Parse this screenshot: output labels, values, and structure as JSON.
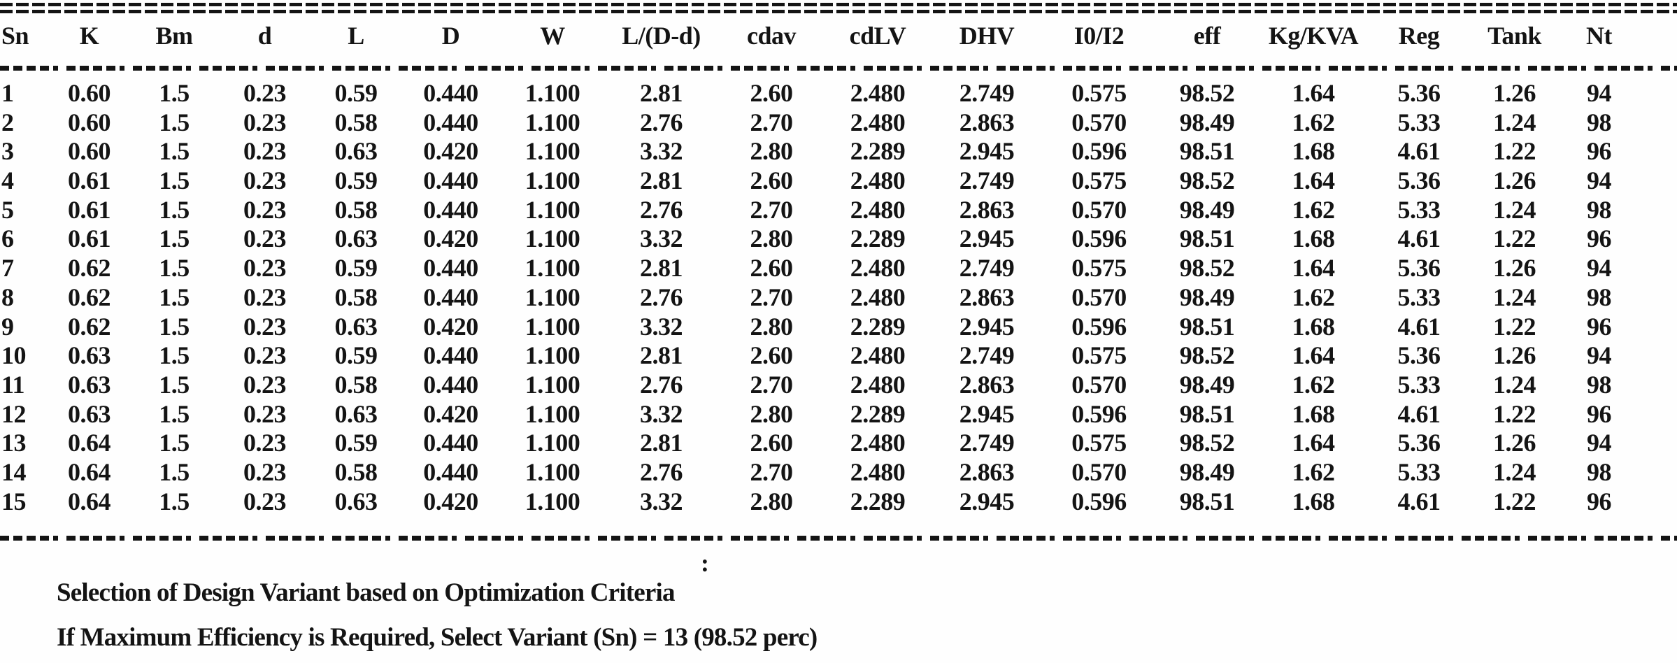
{
  "colors": {
    "ink": "#141414",
    "paper": "#fefefe"
  },
  "table": {
    "headers": [
      "Sn",
      "K",
      "Bm",
      "d",
      "L",
      "D",
      "W",
      "L/(D-d)",
      "cdav",
      "cdLV",
      "DHV",
      "I0/I2",
      "eff",
      "Kg/KVA",
      "Reg",
      "Tank",
      "Nt"
    ],
    "rows": [
      [
        "1",
        "0.60",
        "1.5",
        "0.23",
        "0.59",
        "0.440",
        "1.100",
        "2.81",
        "2.60",
        "2.480",
        "2.749",
        "0.575",
        "98.52",
        "1.64",
        "5.36",
        "1.26",
        "94"
      ],
      [
        "2",
        "0.60",
        "1.5",
        "0.23",
        "0.58",
        "0.440",
        "1.100",
        "2.76",
        "2.70",
        "2.480",
        "2.863",
        "0.570",
        "98.49",
        "1.62",
        "5.33",
        "1.24",
        "98"
      ],
      [
        "3",
        "0.60",
        "1.5",
        "0.23",
        "0.63",
        "0.420",
        "1.100",
        "3.32",
        "2.80",
        "2.289",
        "2.945",
        "0.596",
        "98.51",
        "1.68",
        "4.61",
        "1.22",
        "96"
      ],
      [
        "4",
        "0.61",
        "1.5",
        "0.23",
        "0.59",
        "0.440",
        "1.100",
        "2.81",
        "2.60",
        "2.480",
        "2.749",
        "0.575",
        "98.52",
        "1.64",
        "5.36",
        "1.26",
        "94"
      ],
      [
        "5",
        "0.61",
        "1.5",
        "0.23",
        "0.58",
        "0.440",
        "1.100",
        "2.76",
        "2.70",
        "2.480",
        "2.863",
        "0.570",
        "98.49",
        "1.62",
        "5.33",
        "1.24",
        "98"
      ],
      [
        "6",
        "0.61",
        "1.5",
        "0.23",
        "0.63",
        "0.420",
        "1.100",
        "3.32",
        "2.80",
        "2.289",
        "2.945",
        "0.596",
        "98.51",
        "1.68",
        "4.61",
        "1.22",
        "96"
      ],
      [
        "7",
        "0.62",
        "1.5",
        "0.23",
        "0.59",
        "0.440",
        "1.100",
        "2.81",
        "2.60",
        "2.480",
        "2.749",
        "0.575",
        "98.52",
        "1.64",
        "5.36",
        "1.26",
        "94"
      ],
      [
        "8",
        "0.62",
        "1.5",
        "0.23",
        "0.58",
        "0.440",
        "1.100",
        "2.76",
        "2.70",
        "2.480",
        "2.863",
        "0.570",
        "98.49",
        "1.62",
        "5.33",
        "1.24",
        "98"
      ],
      [
        "9",
        "0.62",
        "1.5",
        "0.23",
        "0.63",
        "0.420",
        "1.100",
        "3.32",
        "2.80",
        "2.289",
        "2.945",
        "0.596",
        "98.51",
        "1.68",
        "4.61",
        "1.22",
        "96"
      ],
      [
        "10",
        "0.63",
        "1.5",
        "0.23",
        "0.59",
        "0.440",
        "1.100",
        "2.81",
        "2.60",
        "2.480",
        "2.749",
        "0.575",
        "98.52",
        "1.64",
        "5.36",
        "1.26",
        "94"
      ],
      [
        "11",
        "0.63",
        "1.5",
        "0.23",
        "0.58",
        "0.440",
        "1.100",
        "2.76",
        "2.70",
        "2.480",
        "2.863",
        "0.570",
        "98.49",
        "1.62",
        "5.33",
        "1.24",
        "98"
      ],
      [
        "12",
        "0.63",
        "1.5",
        "0.23",
        "0.63",
        "0.420",
        "1.100",
        "3.32",
        "2.80",
        "2.289",
        "2.945",
        "0.596",
        "98.51",
        "1.68",
        "4.61",
        "1.22",
        "96"
      ],
      [
        "13",
        "0.64",
        "1.5",
        "0.23",
        "0.59",
        "0.440",
        "1.100",
        "2.81",
        "2.60",
        "2.480",
        "2.749",
        "0.575",
        "98.52",
        "1.64",
        "5.36",
        "1.26",
        "94"
      ],
      [
        "14",
        "0.64",
        "1.5",
        "0.23",
        "0.58",
        "0.440",
        "1.100",
        "2.76",
        "2.70",
        "2.480",
        "2.863",
        "0.570",
        "98.49",
        "1.62",
        "5.33",
        "1.24",
        "98"
      ],
      [
        "15",
        "0.64",
        "1.5",
        "0.23",
        "0.63",
        "0.420",
        "1.100",
        "3.32",
        "2.80",
        "2.289",
        "2.945",
        "0.596",
        "98.51",
        "1.68",
        "4.61",
        "1.22",
        "96"
      ]
    ]
  },
  "footer": {
    "colon": ":",
    "line1": "Selection of Design Variant based on Optimization Criteria",
    "line2": "If Maximum Efficiency is Required, Select Variant (Sn) = 13 (98.52 perc)"
  }
}
